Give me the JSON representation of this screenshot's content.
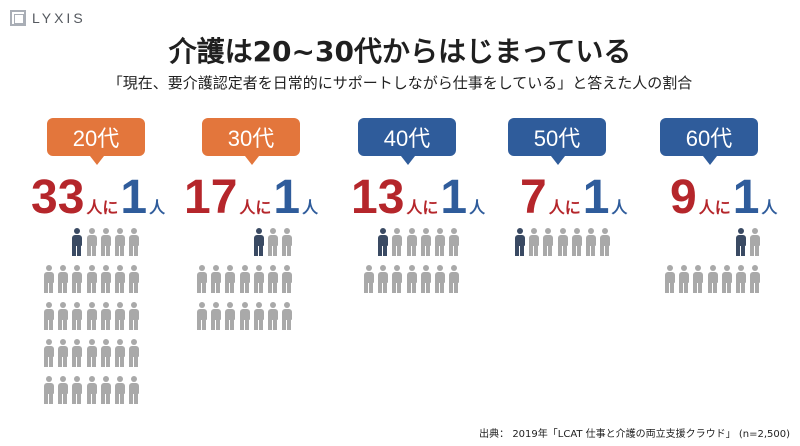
{
  "logo": {
    "text": "LYXIS"
  },
  "title": "介護は20~30代からはじまっている",
  "subtitle": "「現在、要介護認定者を日常的にサポートしながら仕事をしている」と答えた人の割合",
  "particle": "人に",
  "person_suffix": "人",
  "groups": [
    {
      "label": "20代",
      "badge_color": "#e3763c",
      "total": "33",
      "cared": "1",
      "people": 33
    },
    {
      "label": "30代",
      "badge_color": "#e3763c",
      "total": "17",
      "cared": "1",
      "people": 17
    },
    {
      "label": "40代",
      "badge_color": "#2f5c9b",
      "total": "13",
      "cared": "1",
      "people": 13
    },
    {
      "label": "50代",
      "badge_color": "#2f5c9b",
      "total": "7",
      "cared": "1",
      "people": 7
    },
    {
      "label": "60代",
      "badge_color": "#2f5c9b",
      "total": "9",
      "cared": "1",
      "people": 9
    }
  ],
  "colors": {
    "caregiver": "#3a4a63",
    "other": "#a9a9a9",
    "accent_red": "#b5262b",
    "accent_blue": "#2f5c9b"
  },
  "footer": "出典： 2019年「LCAT 仕事と介護の両立支援クラウド」 (n=2,500)"
}
